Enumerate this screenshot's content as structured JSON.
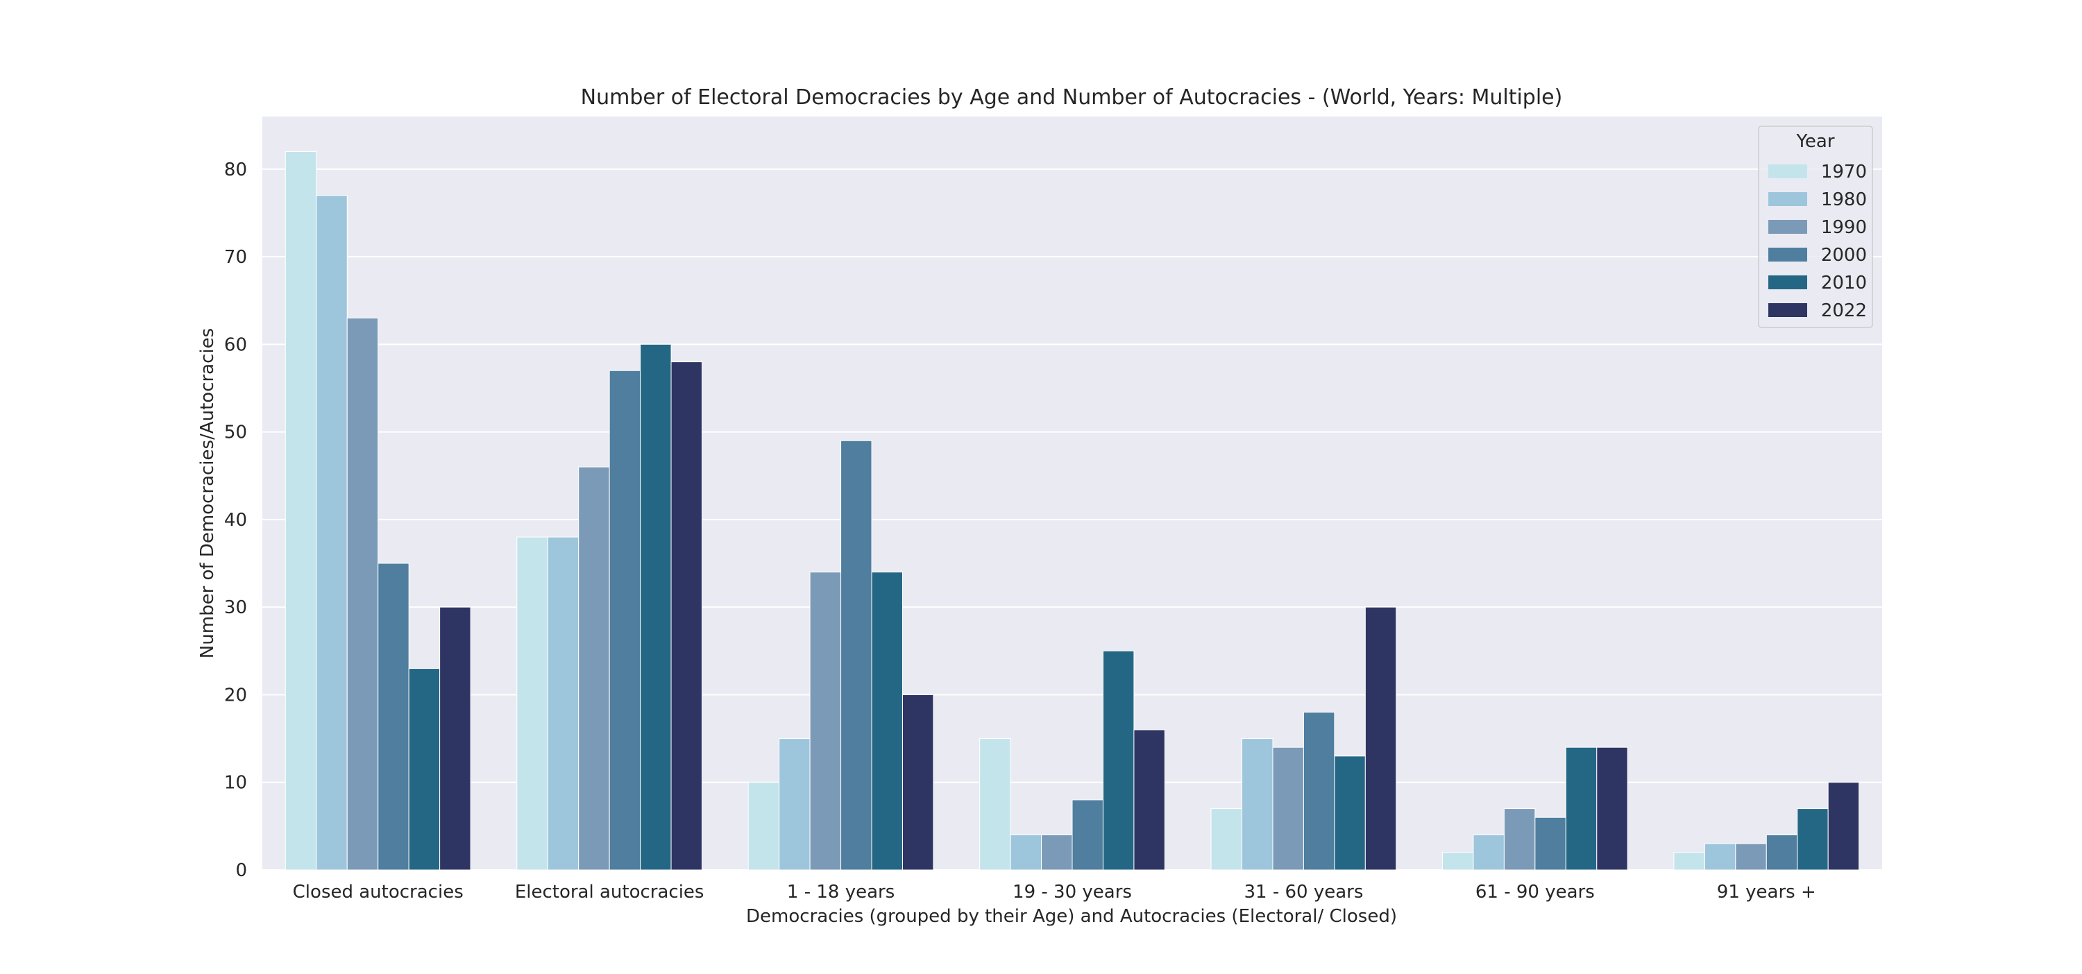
{
  "chart_data": {
    "type": "bar",
    "title": "Number of Electoral Democracies by Age and Number of Autocracies - (World, Years: Multiple)",
    "xlabel": "Democracies (grouped by their Age) and Autocracies (Electoral/ Closed)",
    "ylabel": "Number of Democracies/Autocracies",
    "ylim": [
      0,
      86
    ],
    "yticks": [
      0,
      10,
      20,
      30,
      40,
      50,
      60,
      70,
      80
    ],
    "grid": true,
    "legend": {
      "title": "Year",
      "position": "top-right"
    },
    "categories": [
      "Closed autocracies",
      "Electoral autocracies",
      "1 - 18 years",
      "19 - 30 years",
      "31 - 60 years",
      "61 - 90 years",
      "91 years +"
    ],
    "series": [
      {
        "name": "1970",
        "color": "#c4e4ec",
        "values": [
          82,
          38,
          10,
          15,
          7,
          2,
          2
        ]
      },
      {
        "name": "1980",
        "color": "#9dc6dc",
        "values": [
          77,
          38,
          15,
          4,
          15,
          4,
          3
        ]
      },
      {
        "name": "1990",
        "color": "#7b9ab7",
        "values": [
          63,
          46,
          34,
          4,
          14,
          7,
          3
        ]
      },
      {
        "name": "2000",
        "color": "#4f7e9f",
        "values": [
          35,
          57,
          49,
          8,
          18,
          6,
          4
        ]
      },
      {
        "name": "2010",
        "color": "#246784",
        "values": [
          23,
          60,
          34,
          25,
          13,
          14,
          7
        ]
      },
      {
        "name": "2022",
        "color": "#2e3563",
        "values": [
          30,
          58,
          20,
          16,
          30,
          14,
          10
        ]
      }
    ]
  }
}
